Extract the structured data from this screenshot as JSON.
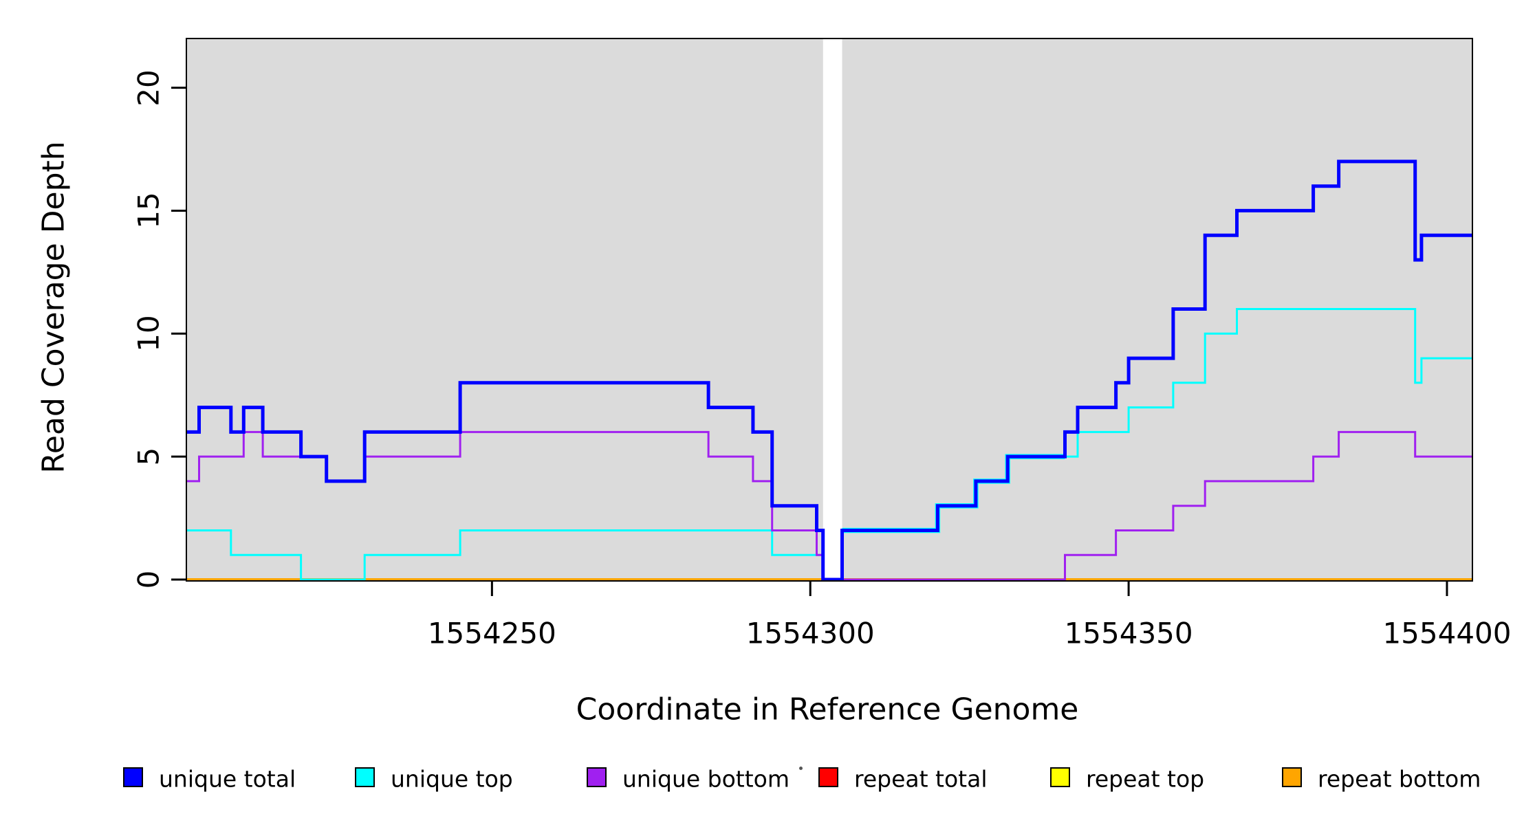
{
  "chart_data": {
    "type": "step-line",
    "title": "",
    "xlabel": "Coordinate in Reference Genome",
    "ylabel": "Read Coverage Depth",
    "x_ticks": [
      1554250,
      1554300,
      1554350,
      1554400
    ],
    "y_ticks": [
      0,
      5,
      10,
      15,
      20
    ],
    "x_range": [
      1554202,
      1554404
    ],
    "y_range": [
      0,
      22
    ],
    "grid": false,
    "legend_position": "bottom",
    "colors": {
      "panel_background": "#DBDBDB",
      "page_background": "#FFFFFF",
      "gap_band": "#FFFFFF",
      "axis": "#000000"
    },
    "gap_band_x": [
      1554302,
      1554305
    ],
    "series": [
      {
        "name": "repeat total",
        "color": "#FF0000",
        "width": 3,
        "points": [
          [
            1554202,
            0
          ]
        ]
      },
      {
        "name": "repeat top",
        "color": "#FFFF00",
        "width": 3,
        "points": [
          [
            1554202,
            0
          ]
        ]
      },
      {
        "name": "repeat bottom",
        "color": "#FFA500",
        "width": 4,
        "points": [
          [
            1554202,
            0
          ]
        ]
      },
      {
        "name": "unique top overlap underlay",
        "color": "#00FFFF",
        "width": 7.5,
        "decorative": true,
        "end": 1554340,
        "points": [
          [
            1554305,
            2
          ],
          [
            1554320,
            3
          ],
          [
            1554326,
            4
          ],
          [
            1554331,
            5
          ]
        ]
      },
      {
        "name": "unique top",
        "color": "#00FFFF",
        "width": 3,
        "points": [
          [
            1554202,
            2
          ],
          [
            1554209,
            1
          ],
          [
            1554220,
            0
          ],
          [
            1554230,
            1
          ],
          [
            1554245,
            2
          ],
          [
            1554294,
            1
          ],
          [
            1554302,
            0
          ],
          [
            1554305,
            2
          ],
          [
            1554320,
            3
          ],
          [
            1554326,
            4
          ],
          [
            1554331,
            5
          ],
          [
            1554342,
            6
          ],
          [
            1554350,
            7
          ],
          [
            1554357,
            8
          ],
          [
            1554362,
            10
          ],
          [
            1554367,
            11
          ],
          [
            1554395,
            8
          ],
          [
            1554396,
            9
          ]
        ]
      },
      {
        "name": "unique bottom",
        "color": "#A020F0",
        "width": 3,
        "points": [
          [
            1554202,
            4
          ],
          [
            1554204,
            5
          ],
          [
            1554211,
            6
          ],
          [
            1554214,
            5
          ],
          [
            1554224,
            4
          ],
          [
            1554230,
            5
          ],
          [
            1554245,
            6
          ],
          [
            1554284,
            5
          ],
          [
            1554291,
            4
          ],
          [
            1554294,
            2
          ],
          [
            1554301,
            1
          ],
          [
            1554302,
            0
          ],
          [
            1554340,
            1
          ],
          [
            1554348,
            2
          ],
          [
            1554357,
            3
          ],
          [
            1554362,
            4
          ],
          [
            1554379,
            5
          ],
          [
            1554383,
            6
          ],
          [
            1554395,
            5
          ]
        ]
      },
      {
        "name": "unique total",
        "color": "#0000FF",
        "width": 5,
        "points": [
          [
            1554202,
            6
          ],
          [
            1554204,
            7
          ],
          [
            1554209,
            6
          ],
          [
            1554211,
            7
          ],
          [
            1554214,
            6
          ],
          [
            1554220,
            5
          ],
          [
            1554224,
            4
          ],
          [
            1554230,
            6
          ],
          [
            1554245,
            8
          ],
          [
            1554284,
            7
          ],
          [
            1554291,
            6
          ],
          [
            1554294,
            3
          ],
          [
            1554301,
            2
          ],
          [
            1554302,
            0
          ],
          [
            1554305,
            2
          ],
          [
            1554320,
            3
          ],
          [
            1554326,
            4
          ],
          [
            1554331,
            5
          ],
          [
            1554340,
            6
          ],
          [
            1554342,
            7
          ],
          [
            1554348,
            8
          ],
          [
            1554350,
            9
          ],
          [
            1554357,
            11
          ],
          [
            1554362,
            14
          ],
          [
            1554367,
            15
          ],
          [
            1554379,
            16
          ],
          [
            1554383,
            17
          ],
          [
            1554395,
            13
          ],
          [
            1554396,
            14
          ]
        ]
      }
    ],
    "legend": [
      {
        "label": "unique total",
        "color": "#0000FF"
      },
      {
        "label": "unique top",
        "color": "#00FFFF"
      },
      {
        "label": "unique bottom",
        "color": "#A020F0"
      },
      {
        "label": "repeat total",
        "color": "#FF0000"
      },
      {
        "label": "repeat top",
        "color": "#FFFF00"
      },
      {
        "label": "repeat bottom",
        "color": "#FFA500"
      }
    ]
  }
}
